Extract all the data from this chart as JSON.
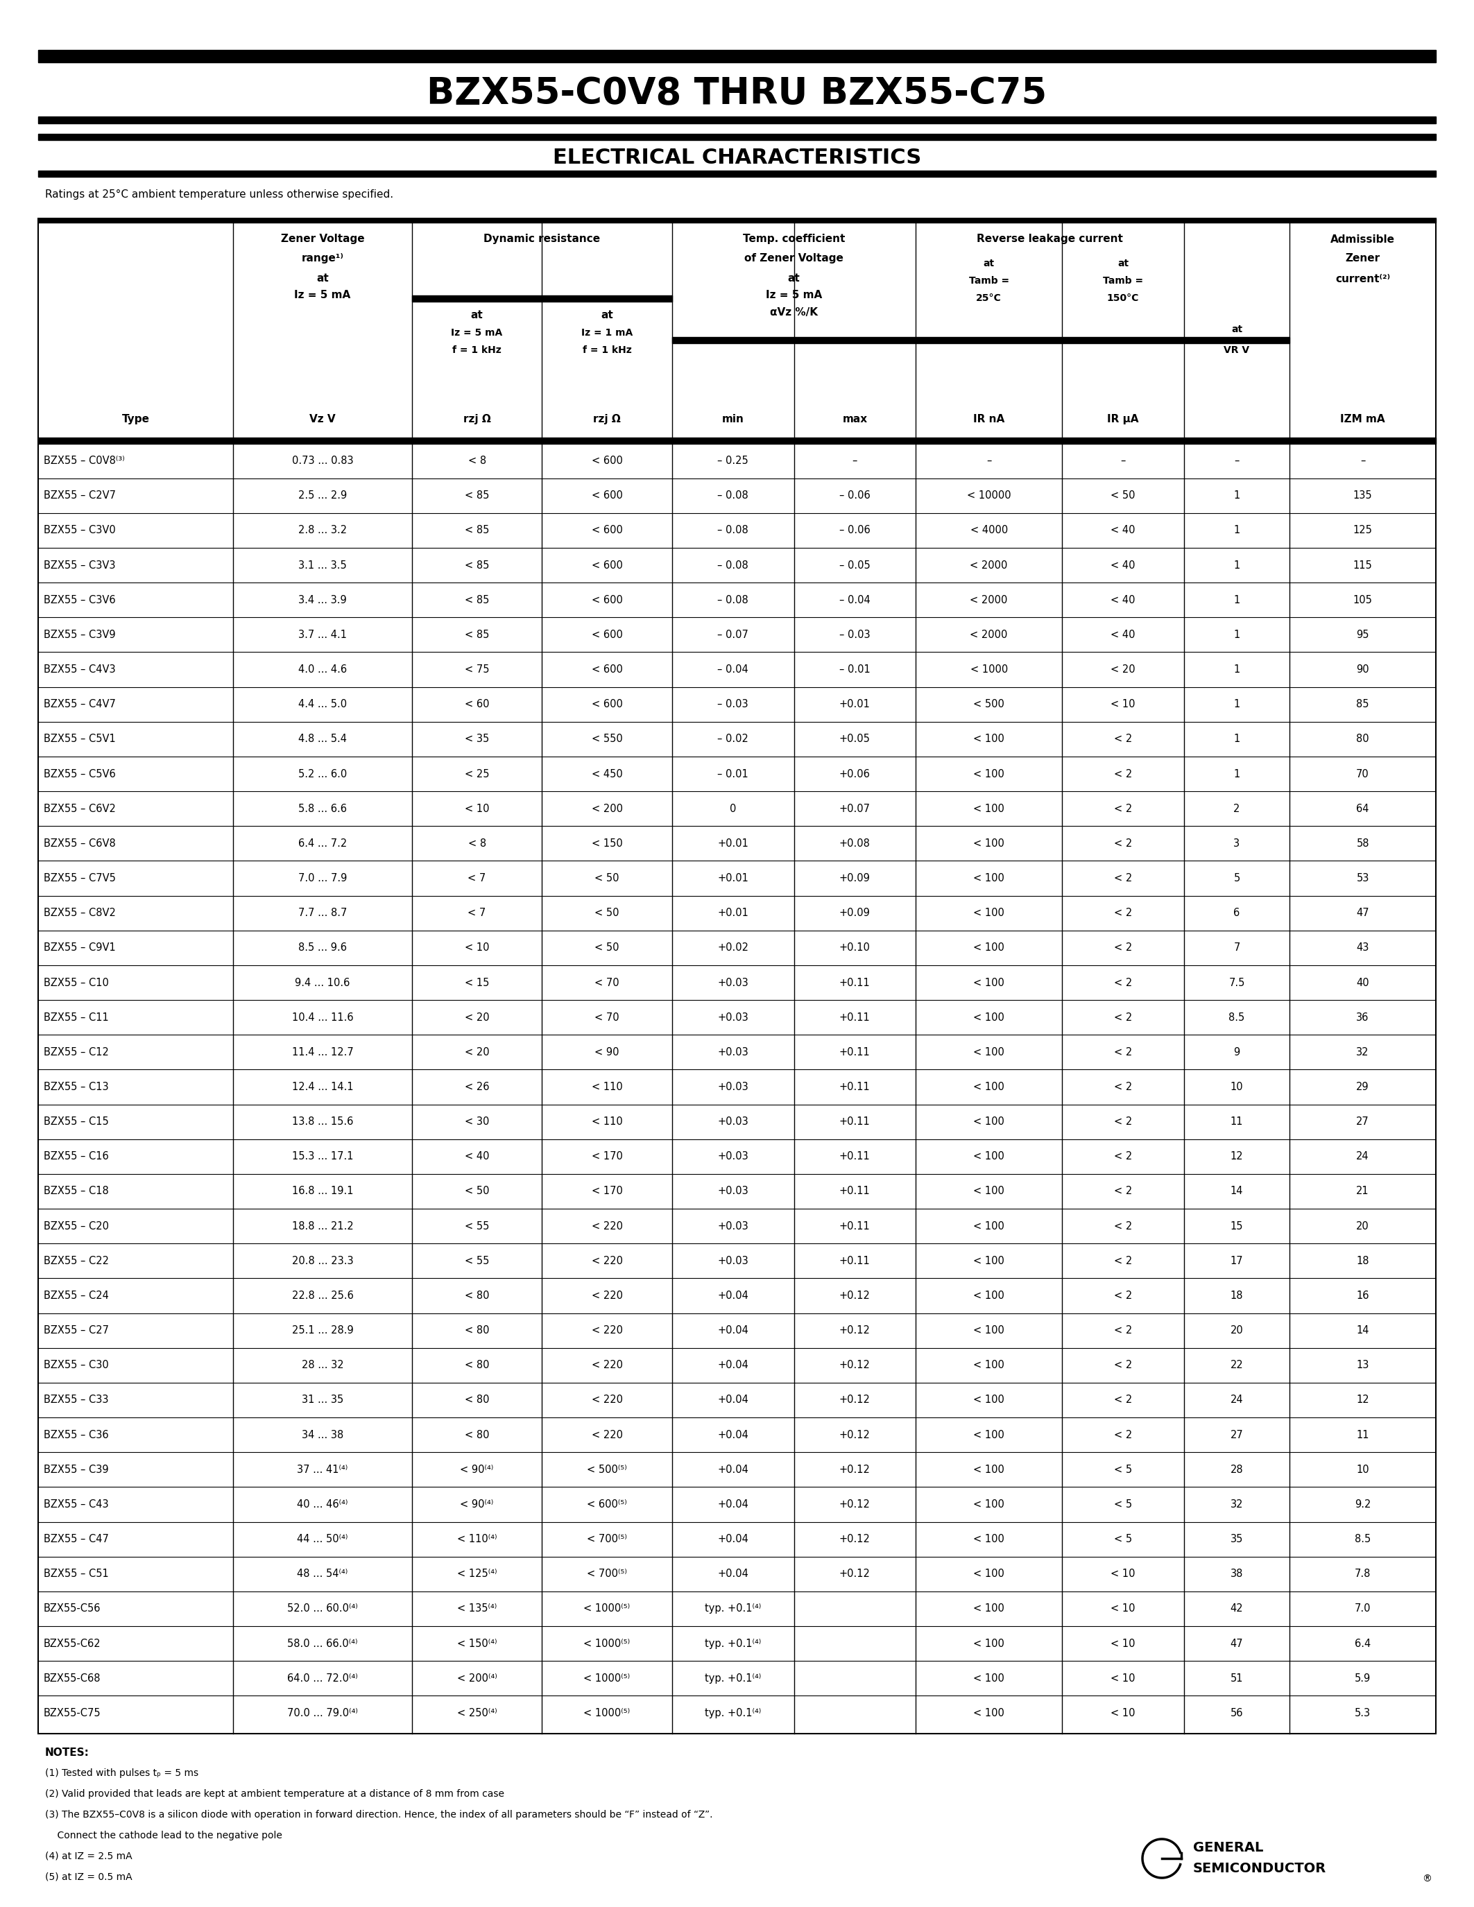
{
  "title": "BZX55-C0V8 THRU BZX55-C75",
  "subtitle": "ELECTRICAL CHARACTERISTICS",
  "ratings_note": "Ratings at 25°C ambient temperature unless otherwise specified.",
  "col_headers": [
    "Type",
    "Zener Voltage\nrange⁽¹⁾\nat\nIz = 5 mA\nVz V",
    "at\nIz = 5 mA\nf = 1 kHz\nrzj Ω",
    "at\nIz = 1 mA\nf = 1 kHz\nrzj Ω",
    "min",
    "max",
    "IR nA",
    "IR μA",
    "at\nVR V",
    "IZM mA"
  ],
  "rows": [
    [
      "BZX55 – C0V8⁽³⁾",
      "0.73 ... 0.83",
      "< 8",
      "< 600",
      "– 0.25",
      "–",
      "–",
      "–",
      "–",
      "–"
    ],
    [
      "BZX55 – C2V7",
      "2.5 ... 2.9",
      "< 85",
      "< 600",
      "– 0.08",
      "– 0.06",
      "< 10000",
      "< 50",
      "1",
      "135"
    ],
    [
      "BZX55 – C3V0",
      "2.8 ... 3.2",
      "< 85",
      "< 600",
      "– 0.08",
      "– 0.06",
      "< 4000",
      "< 40",
      "1",
      "125"
    ],
    [
      "BZX55 – C3V3",
      "3.1 ... 3.5",
      "< 85",
      "< 600",
      "– 0.08",
      "– 0.05",
      "< 2000",
      "< 40",
      "1",
      "115"
    ],
    [
      "BZX55 – C3V6",
      "3.4 ... 3.9",
      "< 85",
      "< 600",
      "– 0.08",
      "– 0.04",
      "< 2000",
      "< 40",
      "1",
      "105"
    ],
    [
      "BZX55 – C3V9",
      "3.7 ... 4.1",
      "< 85",
      "< 600",
      "– 0.07",
      "– 0.03",
      "< 2000",
      "< 40",
      "1",
      "95"
    ],
    [
      "BZX55 – C4V3",
      "4.0 ... 4.6",
      "< 75",
      "< 600",
      "– 0.04",
      "– 0.01",
      "< 1000",
      "< 20",
      "1",
      "90"
    ],
    [
      "BZX55 – C4V7",
      "4.4 ... 5.0",
      "< 60",
      "< 600",
      "– 0.03",
      "+0.01",
      "< 500",
      "< 10",
      "1",
      "85"
    ],
    [
      "BZX55 – C5V1",
      "4.8 ... 5.4",
      "< 35",
      "< 550",
      "– 0.02",
      "+0.05",
      "< 100",
      "< 2",
      "1",
      "80"
    ],
    [
      "BZX55 – C5V6",
      "5.2 ... 6.0",
      "< 25",
      "< 450",
      "– 0.01",
      "+0.06",
      "< 100",
      "< 2",
      "1",
      "70"
    ],
    [
      "BZX55 – C6V2",
      "5.8 ... 6.6",
      "< 10",
      "< 200",
      "0",
      "+0.07",
      "< 100",
      "< 2",
      "2",
      "64"
    ],
    [
      "BZX55 – C6V8",
      "6.4 ... 7.2",
      "< 8",
      "< 150",
      "+0.01",
      "+0.08",
      "< 100",
      "< 2",
      "3",
      "58"
    ],
    [
      "BZX55 – C7V5",
      "7.0 ... 7.9",
      "< 7",
      "< 50",
      "+0.01",
      "+0.09",
      "< 100",
      "< 2",
      "5",
      "53"
    ],
    [
      "BZX55 – C8V2",
      "7.7 ... 8.7",
      "< 7",
      "< 50",
      "+0.01",
      "+0.09",
      "< 100",
      "< 2",
      "6",
      "47"
    ],
    [
      "BZX55 – C9V1",
      "8.5 ... 9.6",
      "< 10",
      "< 50",
      "+0.02",
      "+0.10",
      "< 100",
      "< 2",
      "7",
      "43"
    ],
    [
      "BZX55 – C10",
      "9.4 ... 10.6",
      "< 15",
      "< 70",
      "+0.03",
      "+0.11",
      "< 100",
      "< 2",
      "7.5",
      "40"
    ],
    [
      "BZX55 – C11",
      "10.4 ... 11.6",
      "< 20",
      "< 70",
      "+0.03",
      "+0.11",
      "< 100",
      "< 2",
      "8.5",
      "36"
    ],
    [
      "BZX55 – C12",
      "11.4 ... 12.7",
      "< 20",
      "< 90",
      "+0.03",
      "+0.11",
      "< 100",
      "< 2",
      "9",
      "32"
    ],
    [
      "BZX55 – C13",
      "12.4 ... 14.1",
      "< 26",
      "< 110",
      "+0.03",
      "+0.11",
      "< 100",
      "< 2",
      "10",
      "29"
    ],
    [
      "BZX55 – C15",
      "13.8 ... 15.6",
      "< 30",
      "< 110",
      "+0.03",
      "+0.11",
      "< 100",
      "< 2",
      "11",
      "27"
    ],
    [
      "BZX55 – C16",
      "15.3 ... 17.1",
      "< 40",
      "< 170",
      "+0.03",
      "+0.11",
      "< 100",
      "< 2",
      "12",
      "24"
    ],
    [
      "BZX55 – C18",
      "16.8 ... 19.1",
      "< 50",
      "< 170",
      "+0.03",
      "+0.11",
      "< 100",
      "< 2",
      "14",
      "21"
    ],
    [
      "BZX55 – C20",
      "18.8 ... 21.2",
      "< 55",
      "< 220",
      "+0.03",
      "+0.11",
      "< 100",
      "< 2",
      "15",
      "20"
    ],
    [
      "BZX55 – C22",
      "20.8 ... 23.3",
      "< 55",
      "< 220",
      "+0.03",
      "+0.11",
      "< 100",
      "< 2",
      "17",
      "18"
    ],
    [
      "BZX55 – C24",
      "22.8 ... 25.6",
      "< 80",
      "< 220",
      "+0.04",
      "+0.12",
      "< 100",
      "< 2",
      "18",
      "16"
    ],
    [
      "BZX55 – C27",
      "25.1 ... 28.9",
      "< 80",
      "< 220",
      "+0.04",
      "+0.12",
      "< 100",
      "< 2",
      "20",
      "14"
    ],
    [
      "BZX55 – C30",
      "28 ... 32",
      "< 80",
      "< 220",
      "+0.04",
      "+0.12",
      "< 100",
      "< 2",
      "22",
      "13"
    ],
    [
      "BZX55 – C33",
      "31 ... 35",
      "< 80",
      "< 220",
      "+0.04",
      "+0.12",
      "< 100",
      "< 2",
      "24",
      "12"
    ],
    [
      "BZX55 – C36",
      "34 ... 38",
      "< 80",
      "< 220",
      "+0.04",
      "+0.12",
      "< 100",
      "< 2",
      "27",
      "11"
    ],
    [
      "BZX55 – C39",
      "37 ... 41⁽⁴⁾",
      "< 90⁽⁴⁾",
      "< 500⁽⁵⁾",
      "+0.04",
      "+0.12",
      "< 100",
      "< 5",
      "28",
      "10"
    ],
    [
      "BZX55 – C43",
      "40 ... 46⁽⁴⁾",
      "< 90⁽⁴⁾",
      "< 600⁽⁵⁾",
      "+0.04",
      "+0.12",
      "< 100",
      "< 5",
      "32",
      "9.2"
    ],
    [
      "BZX55 – C47",
      "44 ... 50⁽⁴⁾",
      "< 110⁽⁴⁾",
      "< 700⁽⁵⁾",
      "+0.04",
      "+0.12",
      "< 100",
      "< 5",
      "35",
      "8.5"
    ],
    [
      "BZX55 – C51",
      "48 ... 54⁽⁴⁾",
      "< 125⁽⁴⁾",
      "< 700⁽⁵⁾",
      "+0.04",
      "+0.12",
      "< 100",
      "< 10",
      "38",
      "7.8"
    ],
    [
      "BZX55-C56",
      "52.0 ... 60.0⁽⁴⁾",
      "< 135⁽⁴⁾",
      "< 1000⁽⁵⁾",
      "typ. +0.1⁽⁴⁾",
      "",
      "< 100",
      "< 10",
      "42",
      "7.0"
    ],
    [
      "BZX55-C62",
      "58.0 ... 66.0⁽⁴⁾",
      "< 150⁽⁴⁾",
      "< 1000⁽⁵⁾",
      "typ. +0.1⁽⁴⁾",
      "",
      "< 100",
      "< 10",
      "47",
      "6.4"
    ],
    [
      "BZX55-C68",
      "64.0 ... 72.0⁽⁴⁾",
      "< 200⁽⁴⁾",
      "< 1000⁽⁵⁾",
      "typ. +0.1⁽⁴⁾",
      "",
      "< 100",
      "< 10",
      "51",
      "5.9"
    ],
    [
      "BZX55-C75",
      "70.0 ... 79.0⁽⁴⁾",
      "< 250⁽⁴⁾",
      "< 1000⁽⁵⁾",
      "typ. +0.1⁽⁴⁾",
      "",
      "< 100",
      "< 10",
      "56",
      "5.3"
    ]
  ],
  "notes": [
    "NOTES:",
    "(1) Tested with pulses tₚ = 5 ms",
    "(2) Valid provided that leads are kept at ambient temperature at a distance of 8 mm from case",
    "(3) The BZX55–C0V8 is a silicon diode with operation in forward direction. Hence, the index of all parameters should be “F” instead of “Z”.",
    "    Connect the cathode lead to the negative pole",
    "(4) at IZ = 2.5 mA",
    "(5) at IZ = 0.5 mA"
  ]
}
